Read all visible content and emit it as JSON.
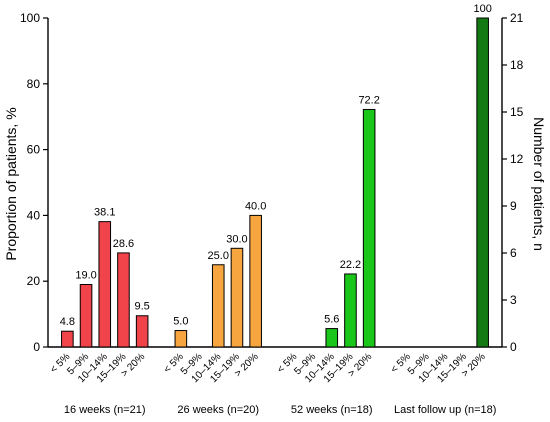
{
  "chart_data": {
    "type": "bar",
    "ylabel": "Proportion of patients, %",
    "y2label": "Number of patients, n",
    "ylim": [
      0,
      100
    ],
    "y2lim": [
      0,
      21
    ],
    "yticks": [
      "0",
      "20",
      "40",
      "60",
      "80",
      "100"
    ],
    "y2ticks": [
      "0",
      "3",
      "6",
      "9",
      "12",
      "15",
      "18",
      "21"
    ],
    "grid": false,
    "categories": [
      "< 5%",
      "5–9%",
      "10–14%",
      "15–19%",
      "> 20%"
    ],
    "groups": [
      {
        "name": "16 weeks (n=21)",
        "color": "#f0434a",
        "values": [
          4.8,
          19.0,
          38.1,
          28.6,
          9.5
        ],
        "labels": [
          "4.8",
          "19.0",
          "38.1",
          "28.6",
          "9.5"
        ]
      },
      {
        "name": "26 weeks (n=20)",
        "color": "#f7a53f",
        "values": [
          5.0,
          0,
          25.0,
          30.0,
          40.0
        ],
        "labels": [
          "5.0",
          "",
          "25.0",
          "30.0",
          "40.0"
        ]
      },
      {
        "name": "52 weeks (n=18)",
        "color": "#19c619",
        "values": [
          0,
          0,
          5.6,
          22.2,
          72.2
        ],
        "labels": [
          "",
          "",
          "5.6",
          "22.2",
          "72.2"
        ]
      },
      {
        "name": "Last follow up (n=18)",
        "color": "#137a13",
        "values": [
          0,
          0,
          0,
          0,
          100
        ],
        "labels": [
          "",
          "",
          "",
          "",
          "100"
        ]
      }
    ]
  }
}
